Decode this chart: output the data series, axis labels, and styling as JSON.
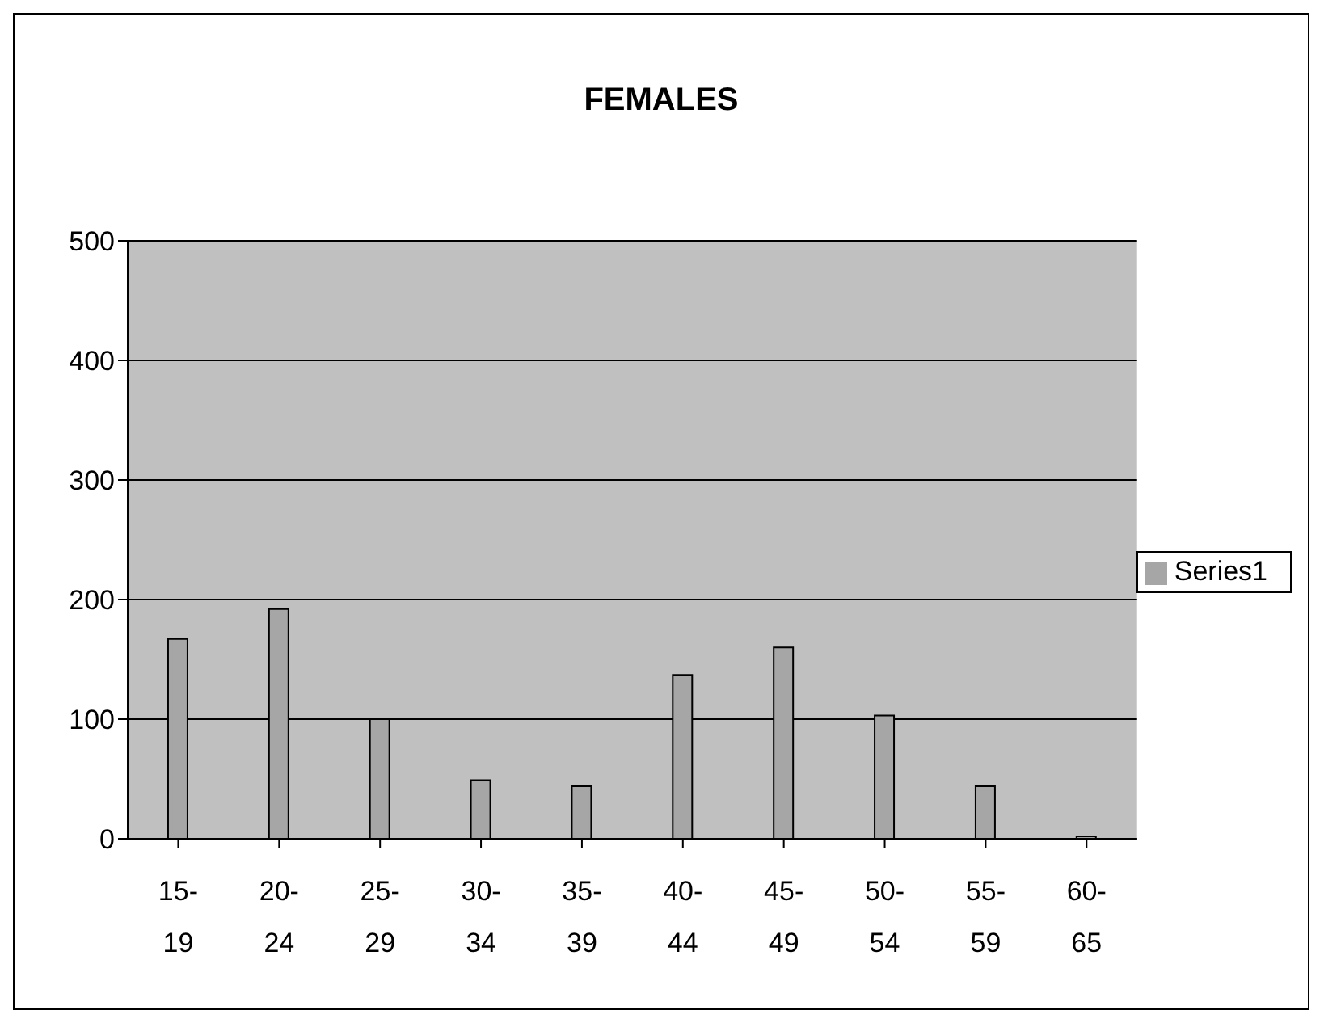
{
  "chart_data": {
    "type": "bar",
    "title": "FEMALES",
    "categories": [
      "15-19",
      "20-24",
      "25-29",
      "30-34",
      "35-39",
      "40-44",
      "45-49",
      "50-54",
      "55-59",
      "60-65"
    ],
    "series": [
      {
        "name": "Series1",
        "color": "#a6a6a6",
        "values": [
          167,
          192,
          100,
          49,
          44,
          137,
          160,
          103,
          44,
          2
        ]
      }
    ],
    "ylim": [
      0,
      500
    ],
    "yticks": [
      0,
      100,
      200,
      300,
      400,
      500
    ],
    "grid": "y",
    "legend": "right"
  }
}
